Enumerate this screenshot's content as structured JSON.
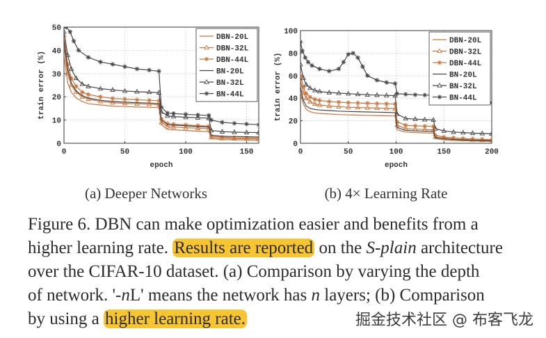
{
  "chart_data": [
    {
      "type": "line",
      "panel_label": "(a)  Deeper Networks",
      "xlabel": "epoch",
      "ylabel": "train error (%)",
      "xlim": [
        0,
        160
      ],
      "ylim": [
        0,
        50
      ],
      "xticks": [
        0,
        50,
        100,
        150
      ],
      "yticks": [
        0,
        10,
        20,
        30,
        40,
        50
      ],
      "grid": true,
      "legend_position": "top-right",
      "series": [
        {
          "name": "DBN-20L",
          "color": "#c8733a",
          "marker": "none",
          "x": [
            0,
            3,
            6,
            10,
            15,
            20,
            30,
            40,
            50,
            60,
            70,
            78,
            80,
            85,
            90,
            100,
            110,
            119,
            121,
            130,
            140,
            150,
            160
          ],
          "y": [
            38,
            26,
            22,
            19.5,
            18,
            17,
            16.5,
            16,
            15.8,
            15.6,
            15.5,
            15.3,
            8,
            6,
            5.8,
            5.5,
            5.2,
            5,
            2,
            1.6,
            1.5,
            1.4,
            1.3
          ]
        },
        {
          "name": "DBN-32L",
          "color": "#c8733a",
          "marker": "triangle",
          "x": [
            0,
            3,
            6,
            10,
            15,
            20,
            30,
            40,
            50,
            60,
            70,
            78,
            80,
            85,
            90,
            100,
            110,
            119,
            121,
            130,
            140,
            150,
            160
          ],
          "y": [
            42,
            30,
            25,
            22,
            20,
            19,
            18,
            17.5,
            17.2,
            17,
            16.8,
            16.6,
            9,
            7.2,
            7,
            6.7,
            6.5,
            6.3,
            2.5,
            2.1,
            2,
            1.9,
            1.8
          ]
        },
        {
          "name": "DBN-44L",
          "color": "#c8733a",
          "marker": "star",
          "x": [
            0,
            3,
            6,
            10,
            15,
            20,
            30,
            40,
            50,
            60,
            70,
            78,
            80,
            85,
            90,
            100,
            110,
            119,
            121,
            130,
            140,
            150,
            160
          ],
          "y": [
            46,
            34,
            28,
            24.5,
            22,
            21,
            20,
            19.3,
            19,
            18.7,
            18.5,
            18.3,
            10.5,
            8.5,
            8.2,
            7.9,
            7.6,
            7.4,
            3,
            2.6,
            2.4,
            2.3,
            2.2
          ]
        },
        {
          "name": "BN-20L",
          "color": "#444444",
          "marker": "none",
          "x": [
            0,
            3,
            6,
            10,
            15,
            20,
            30,
            40,
            50,
            60,
            70,
            78,
            80,
            85,
            90,
            100,
            110,
            119,
            121,
            130,
            140,
            150,
            160
          ],
          "y": [
            44,
            32,
            26,
            22.5,
            20.5,
            19.5,
            18.5,
            18,
            17.7,
            17.5,
            17.3,
            17.1,
            10,
            8,
            7.8,
            7.5,
            7.2,
            7,
            3.5,
            3,
            2.9,
            2.8,
            2.7
          ]
        },
        {
          "name": "BN-32L",
          "color": "#444444",
          "marker": "triangle",
          "x": [
            0,
            3,
            6,
            10,
            15,
            20,
            30,
            40,
            50,
            60,
            70,
            78,
            80,
            85,
            90,
            100,
            110,
            119,
            121,
            130,
            140,
            150,
            160
          ],
          "y": [
            48,
            38,
            32,
            28,
            25.5,
            24.5,
            23.5,
            23,
            22.5,
            22.2,
            22,
            21.8,
            13.5,
            11.8,
            11.5,
            11.2,
            11,
            10.8,
            5.5,
            5,
            4.8,
            4.7,
            4.6
          ]
        },
        {
          "name": "BN-44L",
          "color": "#444444",
          "marker": "star",
          "x": [
            0,
            2,
            5,
            8,
            12,
            20,
            30,
            40,
            50,
            60,
            70,
            78,
            80,
            85,
            90,
            100,
            110,
            119,
            121,
            130,
            140,
            150,
            160
          ],
          "y": [
            50,
            50,
            48,
            44,
            40,
            37,
            35,
            34,
            33,
            32,
            31.5,
            31,
            15.5,
            13,
            12.8,
            12.5,
            12.2,
            12,
            10,
            9,
            8.6,
            8.3,
            8
          ]
        }
      ]
    },
    {
      "type": "line",
      "panel_label": "(b)  4× Learning Rate",
      "xlabel": "epoch",
      "ylabel": "train error (%)",
      "xlim": [
        0,
        200
      ],
      "ylim": [
        0,
        100
      ],
      "xticks": [
        0,
        50,
        100,
        150,
        200
      ],
      "yticks": [
        0,
        20,
        40,
        60,
        80,
        100
      ],
      "grid": true,
      "legend_position": "top-right",
      "series": [
        {
          "name": "DBN-20L",
          "color": "#c8733a",
          "marker": "none",
          "x": [
            0,
            3,
            6,
            10,
            15,
            20,
            30,
            40,
            50,
            60,
            70,
            80,
            90,
            99,
            101,
            110,
            120,
            130,
            139,
            141,
            150,
            160,
            170,
            180,
            190,
            200
          ],
          "y": [
            45,
            35,
            30,
            28,
            27,
            26.5,
            26,
            25.5,
            25.2,
            25,
            24.8,
            24.6,
            24.4,
            24.2,
            12,
            10,
            9.5,
            9.2,
            9,
            4,
            3,
            2.5,
            2.2,
            2,
            1.8,
            1.6
          ]
        },
        {
          "name": "DBN-32L",
          "color": "#c8733a",
          "marker": "triangle",
          "x": [
            0,
            3,
            6,
            10,
            15,
            20,
            30,
            40,
            50,
            60,
            70,
            80,
            90,
            99,
            101,
            110,
            120,
            130,
            139,
            141,
            150,
            160,
            170,
            180,
            190,
            200
          ],
          "y": [
            55,
            45,
            40,
            37,
            35,
            34,
            33,
            32.5,
            32,
            31.8,
            31.5,
            31.2,
            31,
            30.8,
            16,
            13,
            12.5,
            12.2,
            12,
            5.5,
            4.5,
            3.8,
            3.4,
            3,
            2.8,
            2.6
          ]
        },
        {
          "name": "DBN-44L",
          "color": "#c8733a",
          "marker": "star",
          "x": [
            0,
            3,
            6,
            10,
            15,
            20,
            30,
            40,
            50,
            60,
            70,
            80,
            90,
            99,
            101,
            110,
            120,
            130,
            139,
            141,
            150,
            160,
            170,
            180,
            190,
            200
          ],
          "y": [
            60,
            50,
            44,
            41,
            39,
            38,
            37,
            36.5,
            36,
            35.8,
            35.5,
            35.2,
            35,
            34.8,
            19,
            16,
            15.5,
            15.2,
            15,
            7,
            5.5,
            4.8,
            4.2,
            3.8,
            3.5,
            3.2
          ]
        },
        {
          "name": "BN-20L",
          "color": "#444444",
          "marker": "none",
          "x": [
            0,
            3,
            6,
            10,
            15,
            20,
            30,
            40,
            50,
            60,
            70,
            80,
            90,
            99,
            101,
            110,
            120,
            130,
            139,
            141,
            150,
            160,
            170,
            180,
            190,
            200
          ],
          "y": [
            50,
            38,
            33,
            31,
            30,
            29.5,
            29,
            28.5,
            28.2,
            28,
            27.8,
            27.6,
            27.4,
            27.2,
            14,
            11.5,
            11,
            10.7,
            10.5,
            5,
            4,
            3.4,
            3,
            2.7,
            2.5,
            2.3
          ]
        },
        {
          "name": "BN-32L",
          "color": "#444444",
          "marker": "triangle",
          "x": [
            0,
            3,
            6,
            10,
            15,
            20,
            30,
            40,
            50,
            60,
            70,
            80,
            90,
            99,
            101,
            110,
            120,
            130,
            139,
            141,
            150,
            160,
            170,
            180,
            190,
            200
          ],
          "y": [
            70,
            58,
            52,
            49,
            47,
            46,
            45,
            44.5,
            44,
            43.5,
            43,
            42.8,
            42.5,
            42.3,
            26,
            22,
            21.5,
            21,
            20.8,
            13,
            11,
            10,
            9.5,
            9,
            8.7,
            8.4
          ]
        },
        {
          "name": "BN-44L",
          "color": "#444444",
          "marker": "star",
          "x": [
            0,
            2,
            5,
            8,
            12,
            20,
            30,
            40,
            45,
            50,
            55,
            60,
            65,
            70,
            80,
            90,
            99,
            101,
            110,
            120,
            130,
            139,
            141,
            150,
            160,
            170,
            180,
            190,
            200
          ],
          "y": [
            90,
            82,
            76,
            72,
            69,
            66,
            64,
            66,
            72,
            79,
            80,
            76,
            68,
            60,
            56,
            54,
            53,
            44,
            43.5,
            43,
            42.8,
            42.5,
            38,
            37.5,
            37,
            36.8,
            36.5,
            36.2,
            36
          ]
        }
      ]
    }
  ],
  "caption": {
    "lines": [
      [
        {
          "t": "Figure 6. DBN can make optimization easier and benefits from a"
        }
      ],
      [
        {
          "t": "higher learning rate. "
        },
        {
          "t": "Results are reported",
          "hl": true
        },
        {
          "t": " on the "
        },
        {
          "t": "S-plain",
          "i": true
        },
        {
          "t": " architecture"
        }
      ],
      [
        {
          "t": "over the CIFAR-10 dataset. (a) Comparison by varying the depth"
        }
      ],
      [
        {
          "t": "of network. '-"
        },
        {
          "t": "n",
          "i": true
        },
        {
          "t": "L' means the network has "
        },
        {
          "t": "n",
          "i": true
        },
        {
          "t": " layers; (b) Comparison"
        }
      ],
      [
        {
          "t": "by using a "
        },
        {
          "t": "higher learning rate.",
          "hl": true
        }
      ]
    ]
  },
  "watermark": "掘金技术社区 @ 布客飞龙"
}
